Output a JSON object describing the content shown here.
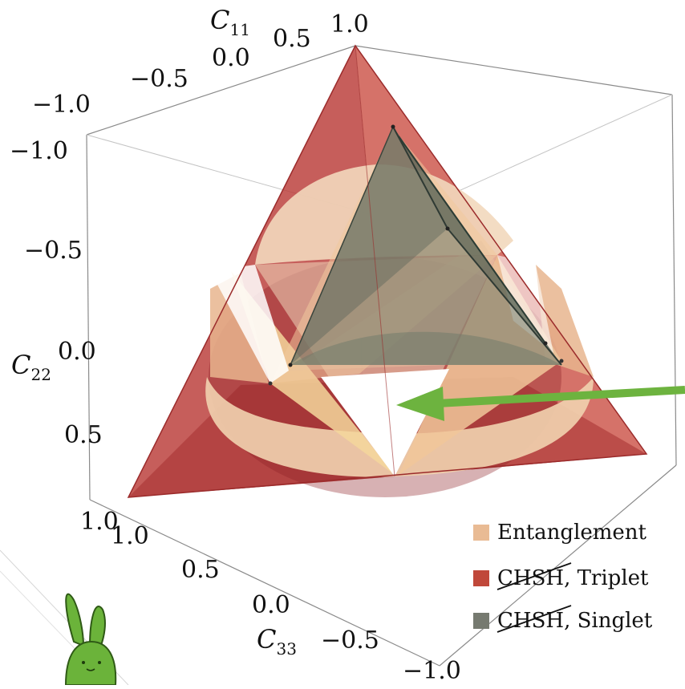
{
  "chart_data": {
    "type": "3d-region",
    "axes": {
      "c11": {
        "label": "C",
        "subscript": "11",
        "ticks": [
          "1.0",
          "0.5",
          "0.0",
          "−0.5",
          "−1.0"
        ]
      },
      "c22": {
        "label": "C",
        "subscript": "22",
        "ticks": [
          "−1.0",
          "−0.5",
          "0.0",
          "0.5",
          "1.0"
        ]
      },
      "c33": {
        "label": "C",
        "subscript": "33",
        "ticks": [
          "1.0",
          "0.5",
          "0.0",
          "−0.5",
          "−1.0"
        ]
      }
    },
    "range": [
      -1,
      1
    ],
    "series": [
      {
        "name": "Entanglement",
        "color": "#e9bb94",
        "strike": ""
      },
      {
        "name": "Triplet",
        "color": "#c0483a",
        "strike": "CHSH"
      },
      {
        "name": "Singlet",
        "color": "#767a70",
        "strike": "CHSH"
      }
    ],
    "legend_position": "bottom-right",
    "annotations": [
      {
        "type": "arrow",
        "color": "#6db33f",
        "points_to": "separable octahedron gap"
      }
    ]
  },
  "legend": {
    "separator": ", "
  },
  "icons": {
    "mascot": "green-bunny-icon"
  }
}
